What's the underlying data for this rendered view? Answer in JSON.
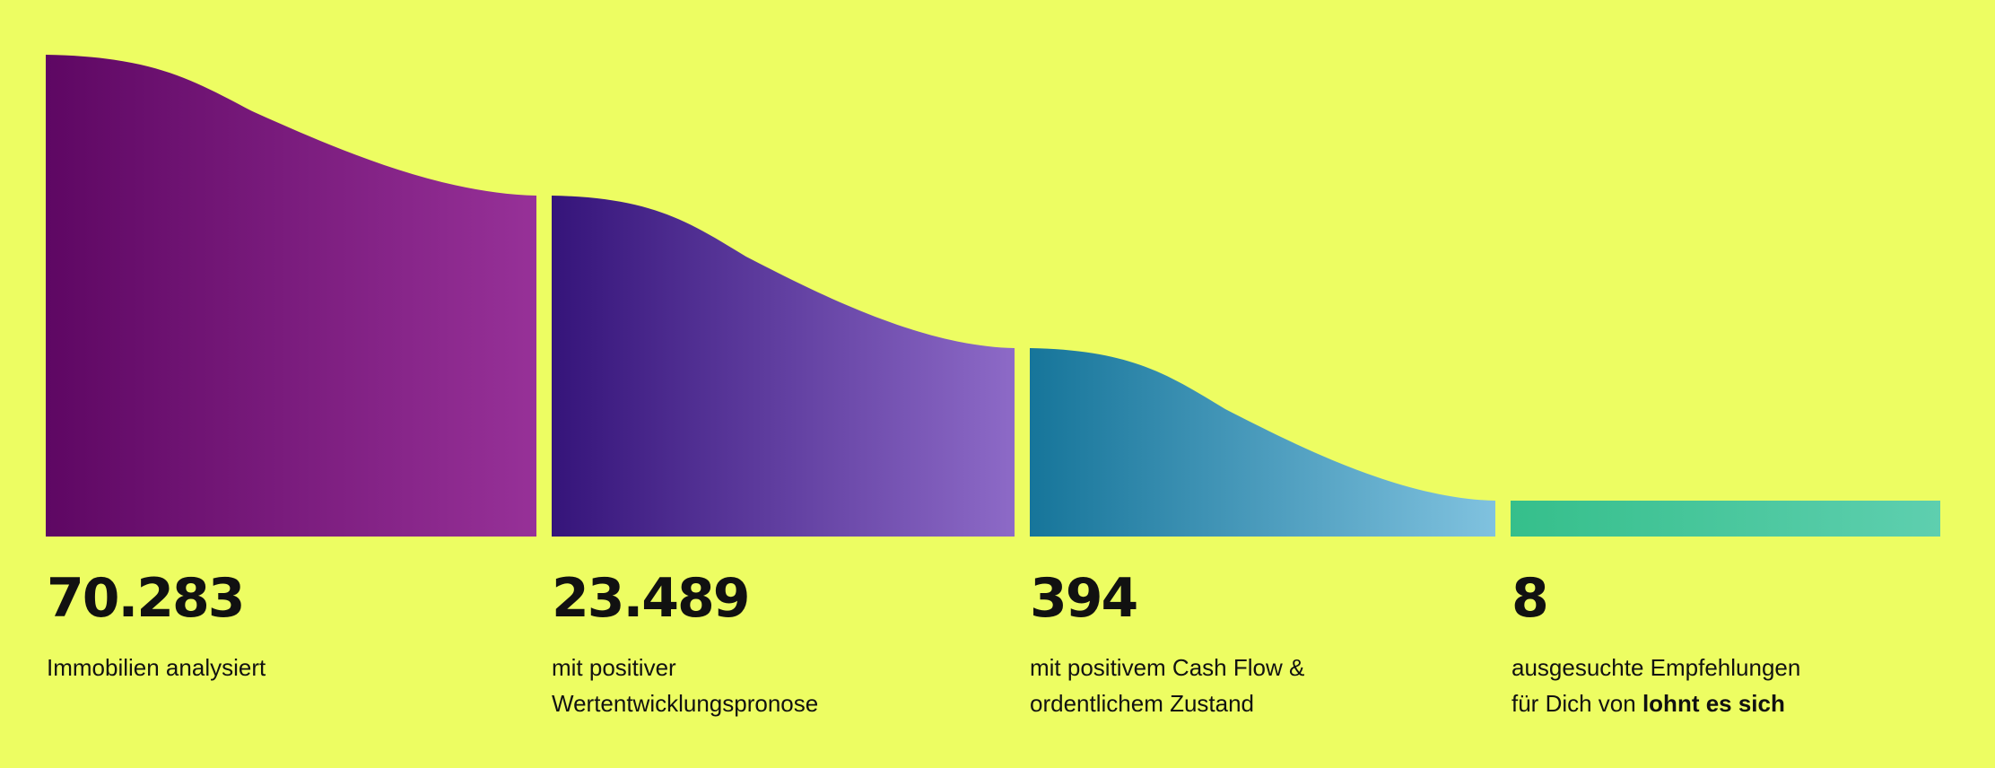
{
  "chart_data": {
    "type": "area",
    "title": "",
    "xlabel": "",
    "ylabel": "",
    "stages": [
      {
        "value_text": "70.283",
        "value": 70283,
        "label_lines": [
          "Immobilien analysiert"
        ],
        "label_bold": "",
        "gradient": [
          "#5E0763",
          "#973198"
        ]
      },
      {
        "value_text": "23.489",
        "value": 23489,
        "label_lines": [
          "mit positiver",
          "Wertentwicklungspronose"
        ],
        "label_bold": "",
        "gradient": [
          "#35147A",
          "#8D6AC7"
        ]
      },
      {
        "value_text": "394",
        "value": 394,
        "label_lines": [
          "mit positivem Cash Flow &",
          "ordentlichem Zustand"
        ],
        "label_bold": "",
        "gradient": [
          "#16759A",
          "#80C2DF"
        ]
      },
      {
        "value_text": "8",
        "value": 8,
        "label_lines": [
          "ausgesuchte Empfehlungen",
          "für Dich von "
        ],
        "label_bold": "lohnt es sich",
        "gradient": [
          "#35BF8B",
          "#5ECFAF"
        ]
      }
    ]
  },
  "colors": {
    "background": "#EDFD62",
    "text": "#111111"
  }
}
